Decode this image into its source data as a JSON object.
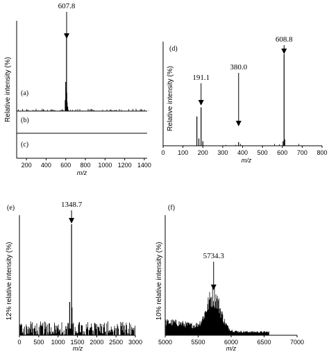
{
  "chart_data": [
    {
      "id": "abc",
      "type": "line",
      "subtype": "stacked-mass-spectra",
      "xlabel": "m/z",
      "ylabel": "Relative intensity (%)",
      "xlim": [
        100,
        1450
      ],
      "xticks": [
        200,
        400,
        600,
        800,
        1000,
        1200,
        1400
      ],
      "panels": [
        {
          "label": "(a)",
          "peak_label": "607.8",
          "peak_x": 607.8,
          "peaks": [
            [
              595,
              0.15
            ],
            [
              600,
              0.4
            ],
            [
              603,
              0.3
            ],
            [
              607.8,
              1.0
            ],
            [
              610,
              0.25
            ],
            [
              614,
              0.12
            ],
            [
              620,
              0.06
            ]
          ]
        },
        {
          "label": "(b)",
          "peaks": []
        },
        {
          "label": "(c)",
          "peaks": []
        }
      ]
    },
    {
      "id": "d",
      "type": "line",
      "subtype": "mass-spectrum",
      "label": "(d)",
      "xlabel": "m/z",
      "ylabel": "Relative intensity (%)",
      "xlim": [
        0,
        800
      ],
      "xticks": [
        0,
        100,
        200,
        300,
        400,
        500,
        600,
        700,
        800
      ],
      "annotations": [
        {
          "label": "191.1",
          "x": 191.1
        },
        {
          "label": "380.0",
          "x": 380.0
        },
        {
          "label": "608.8",
          "x": 608.8
        }
      ],
      "peaks": [
        [
          170,
          0.32
        ],
        [
          180,
          0.08
        ],
        [
          191.1,
          0.42
        ],
        [
          200,
          0.05
        ],
        [
          380.0,
          0.04
        ],
        [
          604,
          0.05
        ],
        [
          608.8,
          1.0
        ],
        [
          612,
          0.07
        ]
      ]
    },
    {
      "id": "e",
      "type": "line",
      "subtype": "mass-spectrum",
      "label": "(e)",
      "xlabel": "m/z",
      "ylabel": "12% relative intensity (%)",
      "xlim": [
        0,
        3000
      ],
      "xticks": [
        0,
        500,
        1000,
        1500,
        2000,
        2500,
        3000
      ],
      "annotations": [
        {
          "label": "1348.7",
          "x": 1348.7
        }
      ],
      "peaks": [
        [
          1300,
          0.3
        ],
        [
          1348.7,
          1.0
        ],
        [
          1360,
          0.25
        ]
      ]
    },
    {
      "id": "f",
      "type": "line",
      "subtype": "mass-spectrum",
      "label": "(f)",
      "xlabel": "m/z",
      "ylabel": "10% relative intensity (%)",
      "xlim": [
        5000,
        7000
      ],
      "xticks": [
        5000,
        5500,
        6000,
        6500,
        7000
      ],
      "annotations": [
        {
          "label": "5734.3",
          "x": 5734.3
        }
      ],
      "envelope_center": 5734.3
    }
  ]
}
